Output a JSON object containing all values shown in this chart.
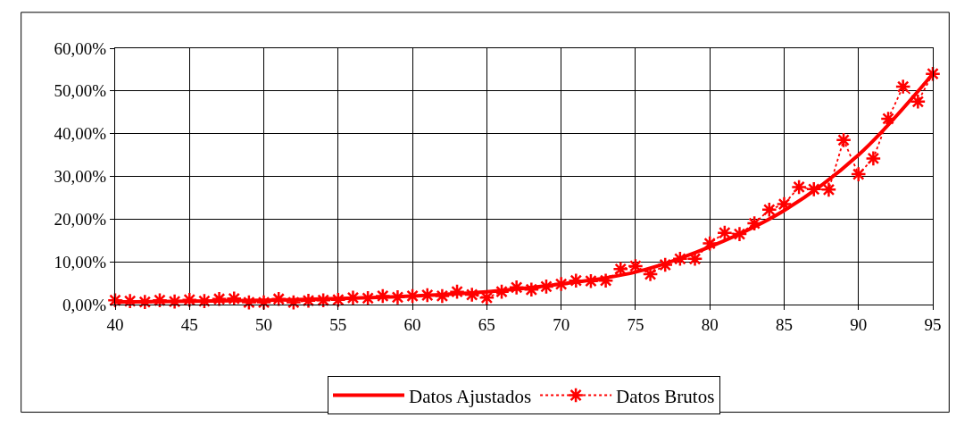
{
  "chart_data": {
    "type": "line",
    "xlim": [
      40,
      95
    ],
    "xticks": [
      40,
      45,
      50,
      55,
      60,
      65,
      70,
      75,
      80,
      85,
      90,
      95
    ],
    "ylim": [
      0,
      60
    ],
    "yticks": [
      {
        "value": 0,
        "label": "0,00%"
      },
      {
        "value": 10,
        "label": "10,00%"
      },
      {
        "value": 20,
        "label": "20,00%"
      },
      {
        "value": 30,
        "label": "30,00%"
      },
      {
        "value": 40,
        "label": "40,00%"
      },
      {
        "value": 50,
        "label": "50,00%"
      },
      {
        "value": 60,
        "label": "60,00%"
      }
    ],
    "grid": true,
    "legend": "bottom",
    "series": [
      {
        "name": "Datos Ajustados",
        "color": "#ff0000",
        "marker": "none",
        "line_style": "solid",
        "x": [
          40,
          45,
          50,
          55,
          60,
          65,
          70,
          75,
          80,
          85,
          90,
          95
        ],
        "values": [
          0.6,
          0.8,
          1.0,
          1.4,
          2.0,
          3.0,
          4.8,
          7.6,
          13.5,
          22.0,
          35.0,
          54.0
        ]
      },
      {
        "name": "Datos Brutos",
        "color": "#ff0000",
        "marker": "cross",
        "line_style": "dotted",
        "x": [
          40,
          41,
          42,
          43,
          44,
          45,
          46,
          47,
          48,
          49,
          50,
          51,
          52,
          53,
          54,
          55,
          56,
          57,
          58,
          59,
          60,
          61,
          62,
          63,
          64,
          65,
          66,
          67,
          68,
          69,
          70,
          71,
          72,
          73,
          74,
          75,
          76,
          77,
          78,
          79,
          80,
          81,
          82,
          83,
          84,
          85,
          86,
          87,
          88,
          89,
          90,
          91,
          92,
          93,
          94,
          95
        ],
        "values": [
          1.0,
          0.8,
          0.6,
          1.0,
          0.7,
          1.1,
          0.8,
          1.3,
          1.4,
          0.5,
          0.5,
          1.3,
          0.5,
          0.9,
          1.0,
          1.1,
          1.6,
          1.5,
          2.0,
          1.7,
          2.0,
          2.2,
          2.0,
          3.0,
          2.3,
          1.6,
          3.0,
          4.0,
          3.5,
          4.2,
          4.8,
          5.6,
          5.5,
          5.6,
          8.3,
          9.0,
          7.1,
          9.3,
          10.7,
          10.7,
          14.3,
          16.8,
          16.5,
          19.0,
          22.2,
          23.5,
          27.5,
          27.0,
          26.9,
          38.5,
          30.5,
          34.2,
          43.5,
          51.0,
          47.5,
          54.0
        ]
      }
    ]
  }
}
